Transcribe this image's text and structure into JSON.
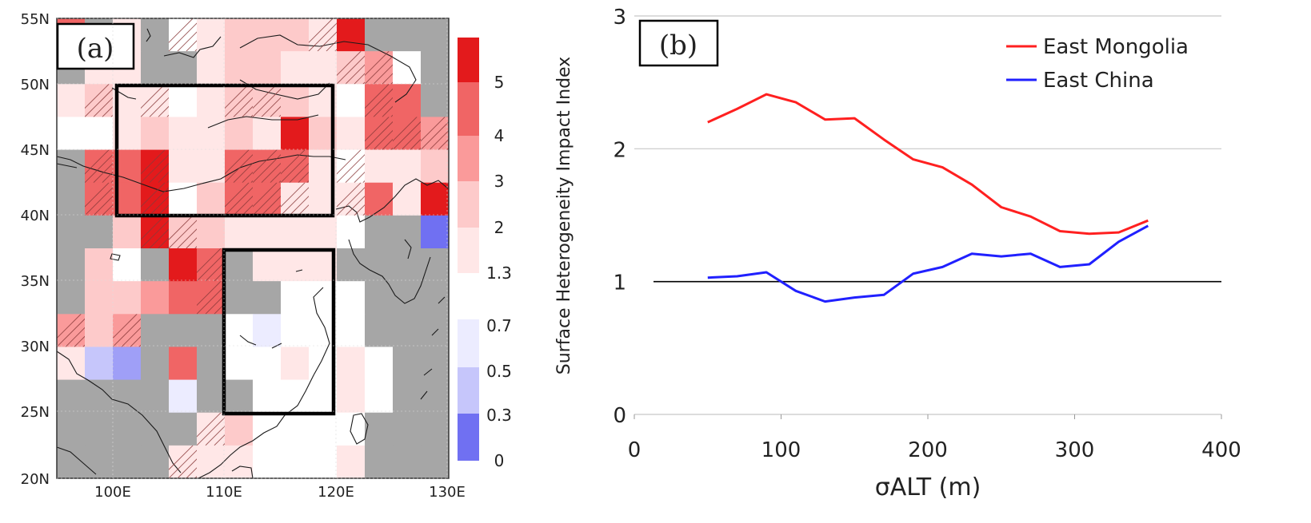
{
  "panel_a": {
    "label": "(a)",
    "lat_ticks": [
      "55N",
      "50N",
      "45N",
      "40N",
      "35N",
      "30N",
      "25N",
      "20N"
    ],
    "lon_ticks": [
      "100E",
      "110E",
      "120E",
      "130E"
    ],
    "colorbar_ticks": [
      "5",
      "4",
      "3",
      "2",
      "1.3",
      "0.7",
      "0.5",
      "0.3",
      "0"
    ],
    "colors": {
      "land_gray": "#a6a6a6",
      "ocean": "#ffffff",
      "red_levels": [
        "#ffe7e7",
        "#fdcaca",
        "#fa9a9a",
        "#f06565",
        "#e31a1c"
      ],
      "blue_levels": [
        "#ececff",
        "#c6c6fb",
        "#9f9ff7",
        "#7070f2"
      ]
    }
  },
  "chart_data": {
    "type": "line",
    "label": "(b)",
    "xlabel": "σALT (m)",
    "ylabel": "Surface Heterogeneity Impact Index",
    "xlim": [
      0,
      400
    ],
    "ylim": [
      0,
      3
    ],
    "x_ticks": [
      "0",
      "100",
      "200",
      "300",
      "400"
    ],
    "y_ticks": [
      "0",
      "1",
      "2",
      "3"
    ],
    "grid": "horizontal",
    "legend_position": "top-right",
    "x": [
      50,
      70,
      90,
      110,
      130,
      150,
      170,
      190,
      210,
      230,
      250,
      270,
      290,
      310,
      330,
      350
    ],
    "series": [
      {
        "name": "East Mongolia",
        "color": "#ff2020",
        "values": [
          2.2,
          2.3,
          2.41,
          2.35,
          2.22,
          2.23,
          2.07,
          1.92,
          1.86,
          1.73,
          1.56,
          1.49,
          1.38,
          1.36,
          1.37,
          1.46
        ]
      },
      {
        "name": "East China",
        "color": "#2020ff",
        "values": [
          1.03,
          1.04,
          1.07,
          0.93,
          0.85,
          0.88,
          0.9,
          1.06,
          1.11,
          1.21,
          1.19,
          1.21,
          1.11,
          1.13,
          1.3,
          1.42
        ]
      }
    ]
  }
}
